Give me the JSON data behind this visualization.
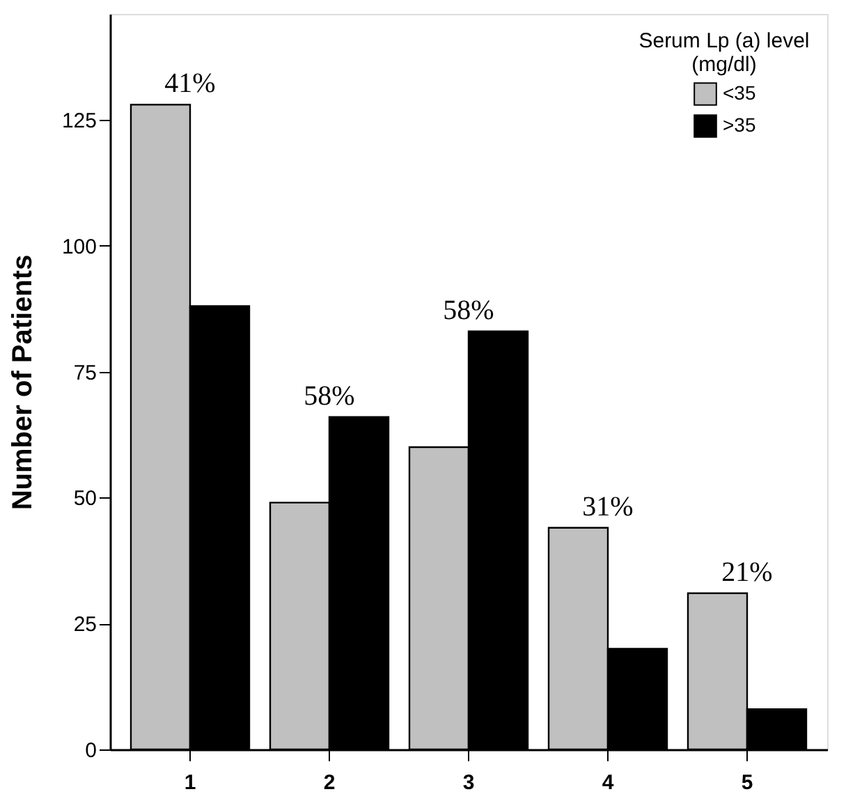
{
  "chart_data": {
    "type": "bar",
    "ylabel": "Number of Patients",
    "legend_title": "Serum Lp (a) level\n(mg/dl)",
    "categories": [
      "1",
      "2",
      "3",
      "4",
      "5"
    ],
    "series": [
      {
        "name": "<35",
        "color": "#c0c0c0",
        "values": [
          128,
          49,
          60,
          44,
          31
        ]
      },
      {
        "name": ">35",
        "color": "#000000",
        "values": [
          88,
          66,
          83,
          20,
          8
        ]
      }
    ],
    "ylim": [
      0,
      146
    ],
    "yticks": [
      0,
      25,
      50,
      75,
      100,
      125
    ],
    "grid": false,
    "legend": "top right",
    "annotations": [
      {
        "text": "41%",
        "x": "1",
        "y": 128
      },
      {
        "text": "58%",
        "x": "2",
        "y": 66
      },
      {
        "text": "58%",
        "x": "3",
        "y": 83
      },
      {
        "text": "31%",
        "x": "4",
        "y": 44
      },
      {
        "text": "21%",
        "x": "5",
        "y": 31
      }
    ]
  }
}
